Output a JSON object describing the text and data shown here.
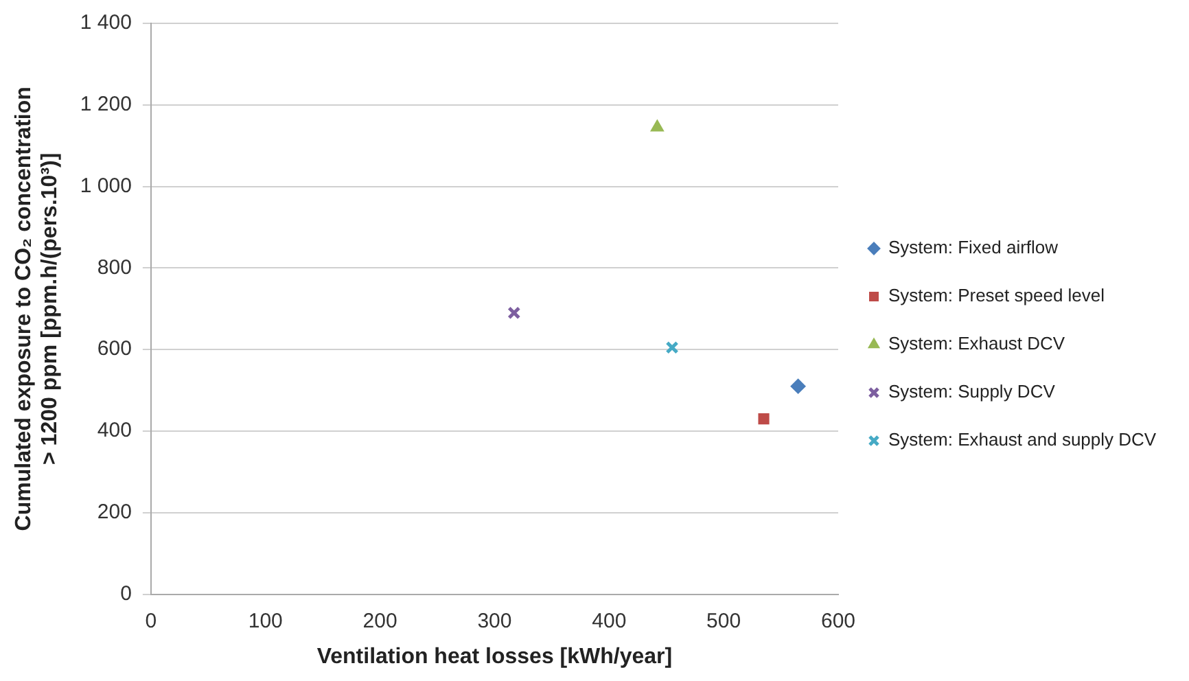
{
  "chart_data": {
    "type": "scatter",
    "xlabel": "Ventilation heat losses [kWh/year]",
    "ylabel": "Cumulated exposure to CO₂ concentration\n> 1200 ppm [ppm.h/(pers.10³)]",
    "xlim": [
      0,
      600
    ],
    "xticks": [
      0,
      100,
      200,
      300,
      400,
      500,
      600
    ],
    "ylim": [
      0,
      1400
    ],
    "yticks": [
      0,
      200,
      400,
      600,
      800,
      {
        "value": 1000,
        "label": "1 000"
      },
      {
        "value": 1200,
        "label": "1 200"
      },
      {
        "value": 1400,
        "label": "1 400"
      }
    ],
    "grid": "y",
    "legend": "right",
    "series": [
      {
        "name": "System: Fixed airflow",
        "color": "#4a7ebb",
        "marker": "diamond",
        "x": [
          565
        ],
        "values": [
          510
        ]
      },
      {
        "name": "System: Preset speed level",
        "color": "#be4b48",
        "marker": "square",
        "x": [
          535
        ],
        "values": [
          430
        ]
      },
      {
        "name": "System: Exhaust DCV",
        "color": "#98b954",
        "marker": "triangle",
        "x": [
          442
        ],
        "values": [
          1145
        ]
      },
      {
        "name": "System: Supply DCV",
        "color": "#7d5fa0",
        "marker": "cross",
        "x": [
          317
        ],
        "values": [
          690
        ]
      },
      {
        "name": "System: Exhaust and supply DCV",
        "color": "#46aac5",
        "marker": "cross",
        "x": [
          455
        ],
        "values": [
          605
        ]
      }
    ]
  }
}
